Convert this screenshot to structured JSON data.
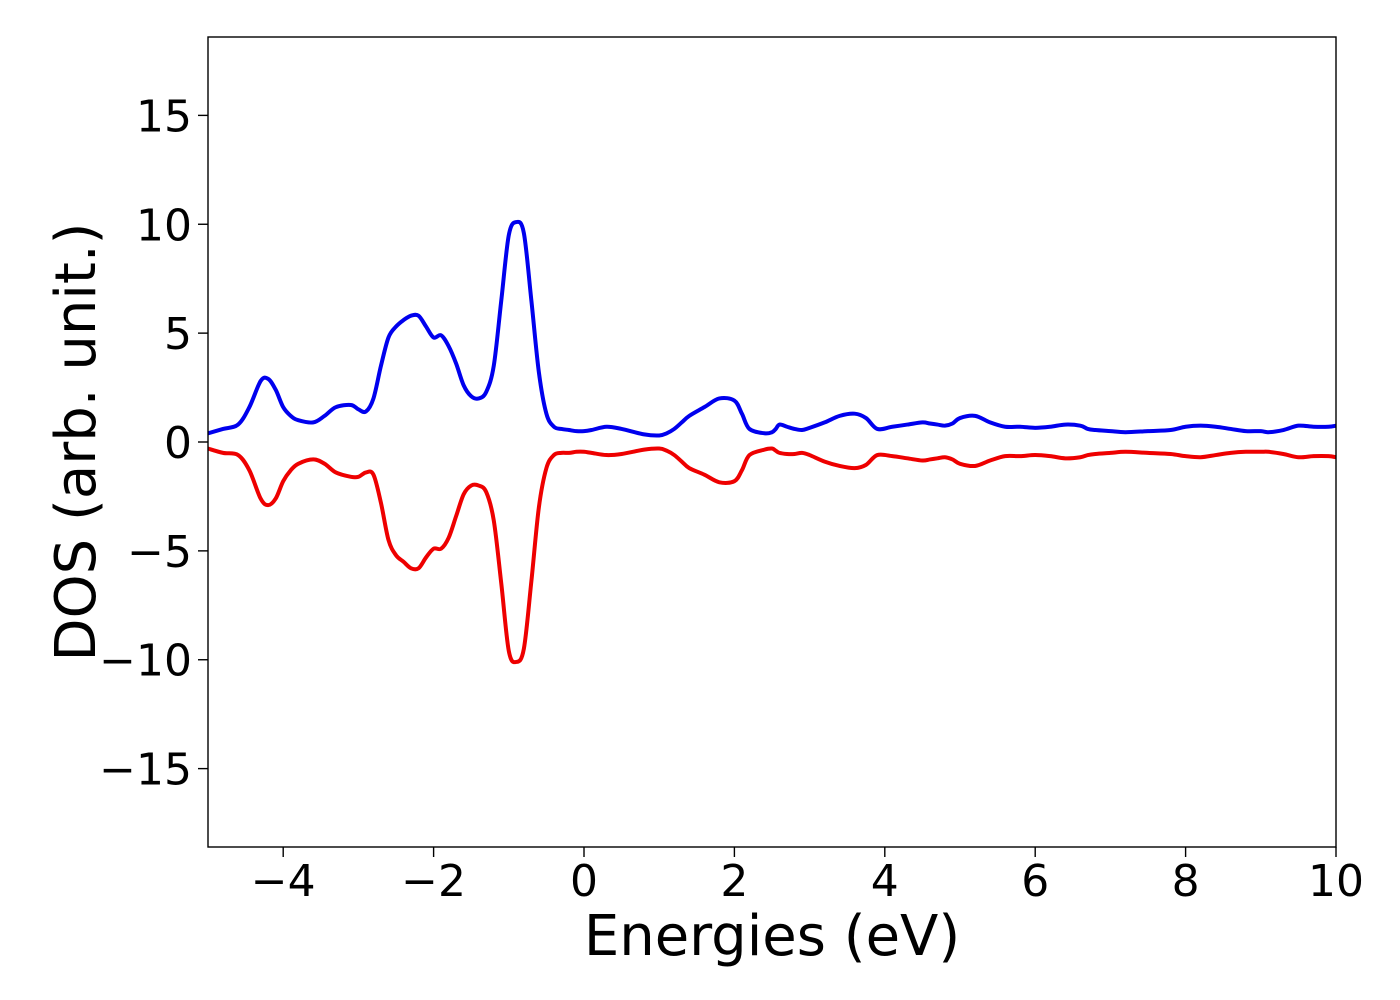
{
  "chart_data": {
    "type": "line",
    "title": "",
    "xlabel": "Energies (eV)",
    "ylabel": "DOS (arb. unit.)",
    "xlim": [
      -5,
      10
    ],
    "ylim": [
      -18.6,
      18.6
    ],
    "xticks": [
      -4,
      -2,
      0,
      2,
      4,
      6,
      8,
      10
    ],
    "xtick_labels": [
      "−4",
      "−2",
      "0",
      "2",
      "4",
      "6",
      "8",
      "10"
    ],
    "yticks": [
      15,
      10,
      5,
      0,
      -5,
      -10,
      -15
    ],
    "ytick_labels": [
      "15",
      "10",
      "5",
      "0",
      "−5",
      "−10",
      "−15"
    ],
    "grid": false,
    "legend": "none",
    "series": [
      {
        "color": "#0000ee",
        "x": [
          -5.0,
          -4.8,
          -4.6,
          -4.45,
          -4.3,
          -4.2,
          -4.1,
          -4.0,
          -3.9,
          -3.8,
          -3.6,
          -3.45,
          -3.3,
          -3.1,
          -3.0,
          -2.9,
          -2.8,
          -2.7,
          -2.6,
          -2.5,
          -2.4,
          -2.3,
          -2.2,
          -2.1,
          -2.0,
          -1.9,
          -1.8,
          -1.7,
          -1.6,
          -1.5,
          -1.4,
          -1.3,
          -1.2,
          -1.1,
          -1.0,
          -0.9,
          -0.8,
          -0.7,
          -0.6,
          -0.5,
          -0.4,
          -0.3,
          -0.2,
          -0.1,
          0.0,
          0.1,
          0.3,
          0.5,
          0.8,
          1.0,
          1.1,
          1.2,
          1.3,
          1.4,
          1.6,
          1.8,
          2.0,
          2.1,
          2.2,
          2.4,
          2.5,
          2.55,
          2.6,
          2.7,
          2.8,
          2.9,
          3.0,
          3.2,
          3.4,
          3.6,
          3.75,
          3.9,
          4.1,
          4.3,
          4.5,
          4.6,
          4.7,
          4.8,
          4.9,
          5.0,
          5.2,
          5.4,
          5.6,
          5.8,
          6.0,
          6.2,
          6.4,
          6.6,
          6.7,
          6.8,
          7.0,
          7.2,
          7.5,
          7.8,
          8.0,
          8.2,
          8.4,
          8.6,
          8.8,
          9.0,
          9.1,
          9.3,
          9.5,
          9.7,
          9.9,
          10.0
        ],
        "values": [
          0.4,
          0.6,
          0.8,
          1.6,
          2.8,
          2.9,
          2.4,
          1.6,
          1.2,
          1.0,
          0.9,
          1.2,
          1.6,
          1.7,
          1.5,
          1.4,
          2.0,
          3.5,
          4.8,
          5.3,
          5.6,
          5.8,
          5.8,
          5.3,
          4.8,
          4.9,
          4.4,
          3.6,
          2.6,
          2.1,
          2.0,
          2.3,
          3.5,
          6.5,
          9.5,
          10.1,
          9.6,
          6.5,
          3.2,
          1.3,
          0.7,
          0.6,
          0.55,
          0.5,
          0.5,
          0.55,
          0.7,
          0.6,
          0.35,
          0.3,
          0.4,
          0.6,
          0.9,
          1.2,
          1.6,
          2.0,
          1.9,
          1.3,
          0.6,
          0.4,
          0.45,
          0.6,
          0.8,
          0.7,
          0.6,
          0.55,
          0.65,
          0.9,
          1.2,
          1.3,
          1.1,
          0.6,
          0.7,
          0.8,
          0.9,
          0.85,
          0.8,
          0.75,
          0.85,
          1.1,
          1.2,
          0.9,
          0.7,
          0.7,
          0.65,
          0.7,
          0.8,
          0.75,
          0.6,
          0.55,
          0.5,
          0.45,
          0.5,
          0.55,
          0.7,
          0.75,
          0.7,
          0.6,
          0.5,
          0.5,
          0.45,
          0.55,
          0.75,
          0.7,
          0.7,
          0.75
        ]
      },
      {
        "color": "#ee0000",
        "x": [
          -5.0,
          -4.8,
          -4.6,
          -4.45,
          -4.3,
          -4.2,
          -4.1,
          -4.0,
          -3.9,
          -3.8,
          -3.6,
          -3.45,
          -3.3,
          -3.1,
          -3.0,
          -2.9,
          -2.8,
          -2.7,
          -2.6,
          -2.5,
          -2.4,
          -2.3,
          -2.2,
          -2.1,
          -2.0,
          -1.9,
          -1.8,
          -1.7,
          -1.6,
          -1.5,
          -1.4,
          -1.3,
          -1.2,
          -1.1,
          -1.0,
          -0.9,
          -0.8,
          -0.7,
          -0.6,
          -0.5,
          -0.4,
          -0.3,
          -0.2,
          -0.1,
          0.0,
          0.1,
          0.3,
          0.5,
          0.8,
          1.0,
          1.1,
          1.2,
          1.3,
          1.4,
          1.6,
          1.8,
          2.0,
          2.1,
          2.2,
          2.4,
          2.5,
          2.55,
          2.6,
          2.7,
          2.8,
          2.9,
          3.0,
          3.2,
          3.4,
          3.6,
          3.75,
          3.9,
          4.1,
          4.3,
          4.5,
          4.6,
          4.7,
          4.8,
          4.9,
          5.0,
          5.2,
          5.4,
          5.6,
          5.8,
          6.0,
          6.2,
          6.4,
          6.6,
          6.7,
          6.8,
          7.0,
          7.2,
          7.5,
          7.8,
          8.0,
          8.2,
          8.4,
          8.6,
          8.8,
          9.0,
          9.1,
          9.3,
          9.5,
          9.7,
          9.9,
          10.0
        ],
        "values": [
          -0.3,
          -0.5,
          -0.6,
          -1.3,
          -2.6,
          -2.9,
          -2.6,
          -1.8,
          -1.3,
          -1.0,
          -0.8,
          -1.0,
          -1.4,
          -1.6,
          -1.6,
          -1.4,
          -1.5,
          -2.8,
          -4.5,
          -5.2,
          -5.5,
          -5.8,
          -5.8,
          -5.3,
          -4.9,
          -4.9,
          -4.4,
          -3.4,
          -2.4,
          -2.0,
          -2.0,
          -2.3,
          -3.6,
          -6.5,
          -9.6,
          -10.1,
          -9.5,
          -6.4,
          -3.0,
          -1.2,
          -0.6,
          -0.5,
          -0.5,
          -0.45,
          -0.45,
          -0.5,
          -0.6,
          -0.55,
          -0.35,
          -0.3,
          -0.4,
          -0.6,
          -0.9,
          -1.2,
          -1.5,
          -1.85,
          -1.8,
          -1.3,
          -0.6,
          -0.35,
          -0.3,
          -0.4,
          -0.5,
          -0.55,
          -0.55,
          -0.5,
          -0.6,
          -0.9,
          -1.1,
          -1.2,
          -1.05,
          -0.6,
          -0.65,
          -0.75,
          -0.85,
          -0.8,
          -0.75,
          -0.7,
          -0.8,
          -1.0,
          -1.1,
          -0.85,
          -0.65,
          -0.65,
          -0.6,
          -0.65,
          -0.75,
          -0.7,
          -0.6,
          -0.55,
          -0.5,
          -0.45,
          -0.5,
          -0.55,
          -0.65,
          -0.7,
          -0.6,
          -0.5,
          -0.45,
          -0.45,
          -0.45,
          -0.55,
          -0.7,
          -0.65,
          -0.65,
          -0.7
        ]
      }
    ]
  }
}
